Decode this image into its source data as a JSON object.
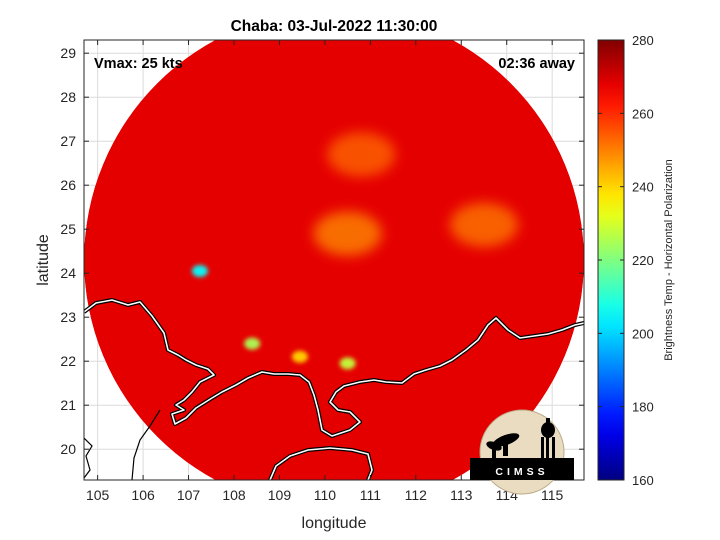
{
  "chart_data": {
    "type": "heatmap",
    "title": "Chaba: 03-Jul-2022 11:30:00",
    "xlabel": "longitude",
    "ylabel": "latitude",
    "xlim": [
      104.7,
      115.7
    ],
    "ylim": [
      19.3,
      29.3
    ],
    "xticks": [
      105,
      106,
      107,
      108,
      109,
      110,
      111,
      112,
      113,
      114,
      115
    ],
    "yticks": [
      20,
      21,
      22,
      23,
      24,
      25,
      26,
      27,
      28,
      29
    ],
    "grid": true,
    "annotations": {
      "vmax": "Vmax: 25 kts",
      "time_away": "02:36 away"
    },
    "swath_center": {
      "lon": 110.2,
      "lat": 24.3
    },
    "colorbar": {
      "label": "Brightness Temp - Horizontal Polarization",
      "range": [
        160,
        280
      ],
      "ticks": [
        160,
        180,
        200,
        220,
        240,
        260,
        280
      ],
      "colormap": "jet",
      "position": "right"
    },
    "features": [
      {
        "name": "spiral band core",
        "lon": 110.5,
        "lat": 24.9,
        "temp": 248
      },
      {
        "name": "spiral band north",
        "lon": 110.8,
        "lat": 26.7,
        "temp": 252
      },
      {
        "name": "outer band east",
        "lon": 113.5,
        "lat": 25.1,
        "temp": 250
      },
      {
        "name": "convective cell",
        "lon": 107.25,
        "lat": 24.05,
        "temp": 205
      },
      {
        "name": "convective cell",
        "lon": 108.4,
        "lat": 22.4,
        "temp": 225
      },
      {
        "name": "convective cell",
        "lon": 110.5,
        "lat": 21.95,
        "temp": 228
      },
      {
        "name": "convective cell",
        "lon": 109.45,
        "lat": 22.1,
        "temp": 240
      }
    ]
  },
  "logo": {
    "text": "CIMSS"
  }
}
